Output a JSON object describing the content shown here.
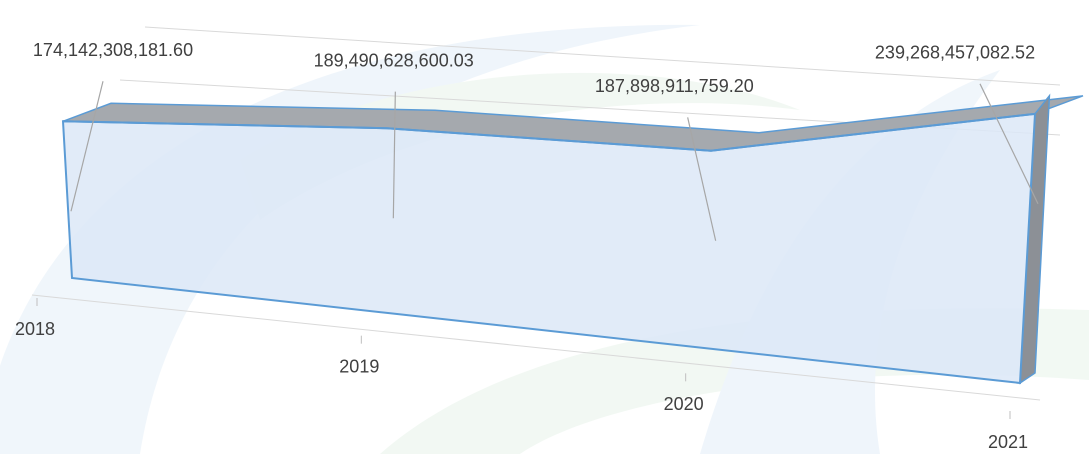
{
  "chart_data": {
    "type": "area3d",
    "categories": [
      "2018",
      "2019",
      "2020",
      "2021"
    ],
    "values": [
      174142308181.6,
      189490628600.03,
      187898911759.2,
      239268457082.52
    ],
    "value_labels": [
      "174,142,308,181.60",
      "189,490,628,600.03",
      "187,898,911,759.20",
      "239,268,457,082.52"
    ],
    "color": "#dce8f7",
    "edge_color": "#5b9bd5",
    "top_color": "#a5a9ae"
  }
}
